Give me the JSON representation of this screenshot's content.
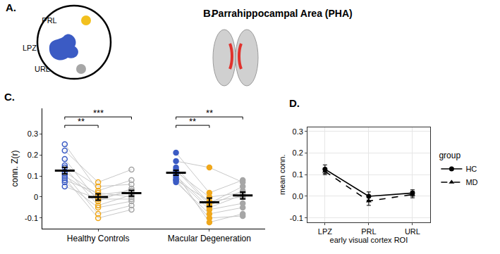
{
  "panels": [
    {
      "label": "A.",
      "regions": [
        {
          "name": "PRL",
          "color": "#f2c01e"
        },
        {
          "name": "LPZ",
          "color": "#3b5bc4"
        },
        {
          "name": "URL",
          "color": "#a6a6a6"
        }
      ]
    },
    {
      "label": "B.",
      "title": "Parrahippocampal Area (PHA)"
    }
  ],
  "chart_data": [
    {
      "type": "scatter",
      "title": "C.",
      "y_label": "conn. Z(r)",
      "conditions": [
        "LPZ",
        "PRL",
        "URL"
      ],
      "colors": [
        "#3b5bc4",
        "#f0a81c",
        "#a6a6a6"
      ],
      "ylim": [
        -0.15,
        0.42
      ],
      "yticks": [
        -0.1,
        0,
        0.1,
        0.2,
        0.3
      ],
      "grid": false,
      "groups": [
        {
          "name": "Healthy Controls",
          "marker": "circle-open",
          "subjects": [
            [
              0.25,
              0.03,
              0.08
            ],
            [
              0.22,
              0.07,
              0.13
            ],
            [
              0.18,
              -0.02,
              0.04
            ],
            [
              0.15,
              0.05,
              0.06
            ],
            [
              0.14,
              -0.04,
              0.01
            ],
            [
              0.12,
              0.01,
              0.03
            ],
            [
              0.11,
              -0.08,
              -0.04
            ],
            [
              0.1,
              0.0,
              0.02
            ],
            [
              0.09,
              -0.1,
              -0.06
            ],
            [
              0.08,
              0.02,
              0.0
            ],
            [
              0.07,
              -0.05,
              -0.02
            ],
            [
              0.05,
              -0.01,
              -0.01
            ]
          ],
          "means": [
            0.125,
            0.0,
            0.018
          ],
          "errors": [
            0.016,
            0.015,
            0.014
          ]
        },
        {
          "name": "Macular Degeneration",
          "marker": "circle",
          "subjects": [
            [
              0.21,
              0.02,
              0.08
            ],
            [
              0.17,
              0.14,
              0.07
            ],
            [
              0.14,
              -0.03,
              0.05
            ],
            [
              0.13,
              -0.04,
              0.03
            ],
            [
              0.12,
              0.0,
              0.02
            ],
            [
              0.11,
              -0.12,
              -0.08
            ],
            [
              0.1,
              -0.05,
              0.01
            ],
            [
              0.09,
              -0.06,
              -0.03
            ],
            [
              0.08,
              -0.1,
              -0.09
            ],
            [
              0.08,
              -0.02,
              0.0
            ],
            [
              0.07,
              -0.08,
              -0.05
            ]
          ],
          "means": [
            0.115,
            -0.025,
            0.007
          ],
          "errors": [
            0.012,
            0.02,
            0.016
          ]
        }
      ],
      "significance": [
        {
          "group": 0,
          "from": 0,
          "to": 1,
          "label": "**"
        },
        {
          "group": 0,
          "from": 0,
          "to": 2,
          "label": "***"
        },
        {
          "group": 1,
          "from": 0,
          "to": 1,
          "label": "**"
        },
        {
          "group": 1,
          "from": 0,
          "to": 2,
          "label": "**"
        }
      ]
    },
    {
      "type": "line",
      "title": "D.",
      "x_label": "early visual cortex ROI",
      "y_label": "mean conn.",
      "categories": [
        "LPZ",
        "PRL",
        "URL"
      ],
      "ylim": [
        -0.12,
        0.32
      ],
      "yticks": [
        {
          "value": -0.1,
          "label": "-0.1"
        },
        {
          "value": 0,
          "label": "0.0"
        },
        {
          "value": 0.1,
          "label": "0.1"
        },
        {
          "value": 0.2,
          "label": "0.2"
        },
        {
          "value": 0.3,
          "label": "0.3"
        }
      ],
      "grid": true,
      "legend": "right",
      "legend_title": "group",
      "series": [
        {
          "name": "HC",
          "color": "#000000",
          "line_style": "solid",
          "marker": "circle",
          "values": [
            0.125,
            0.0,
            0.015
          ],
          "errors": [
            0.02,
            0.02,
            0.015
          ]
        },
        {
          "name": "MD",
          "color": "#000000",
          "line_style": "dash",
          "marker": "triangle-up",
          "values": [
            0.115,
            -0.022,
            0.008
          ],
          "errors": [
            0.015,
            0.02,
            0.015
          ]
        }
      ]
    }
  ]
}
